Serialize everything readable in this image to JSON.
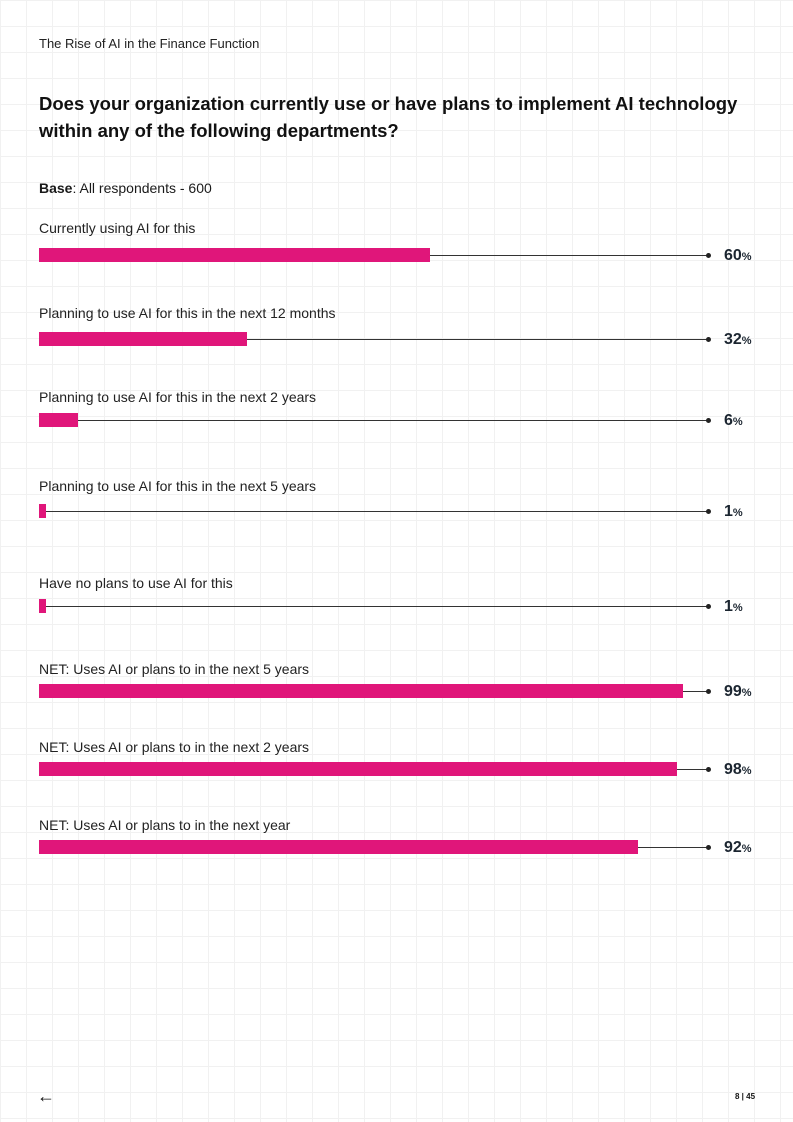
{
  "header": {
    "doc_title": "The Rise of AI in the Finance Function"
  },
  "question": "Does your organization currently use or have plans to implement AI technology within any of the following departments?",
  "base": {
    "label": "Base",
    "text": ": All respondents -  600"
  },
  "footer": {
    "back_icon": "arrow-left-icon",
    "page": "8 | 45"
  },
  "colors": {
    "bar": "#E0167A",
    "track": "#333333"
  },
  "chart_data": {
    "type": "bar",
    "orientation": "horizontal",
    "title": "Does your organization currently use or have plans to implement AI technology within any of the following departments?",
    "subtitle": "Base: All respondents - 600",
    "categories": [
      "Currently using AI for this",
      "Planning to use AI for this in the next 12 months",
      "Planning to use AI for this in the next 2 years",
      "Planning to use AI for this in the next 5 years",
      "Have no plans to use AI for this",
      "NET: Uses AI or plans to in the next 5 years",
      "NET: Uses AI or plans to in the next 2 years",
      "NET: Uses AI or plans to in the next year"
    ],
    "values": [
      60,
      32,
      6,
      1,
      1,
      99,
      98,
      92
    ],
    "unit": "%",
    "xlim": [
      0,
      100
    ]
  },
  "rows": [
    {
      "label": "Currently using AI for this",
      "value": "60"
    },
    {
      "label": "Planning to use AI for this in the next 12 months",
      "value": "32"
    },
    {
      "label": "Planning to use AI for this in the next 2 years",
      "value": "6"
    },
    {
      "label": "Planning to use AI for this in the next 5 years",
      "value": "1"
    },
    {
      "label": "Have no plans to use AI for this",
      "value": "1"
    },
    {
      "label": "NET: Uses AI or plans to in the next 5 years",
      "value": "99"
    },
    {
      "label": "NET: Uses AI or plans to in the next 2 years",
      "value": "98"
    },
    {
      "label": "NET: Uses AI or plans to in the next year",
      "value": "92"
    }
  ],
  "percent_sign": "%"
}
